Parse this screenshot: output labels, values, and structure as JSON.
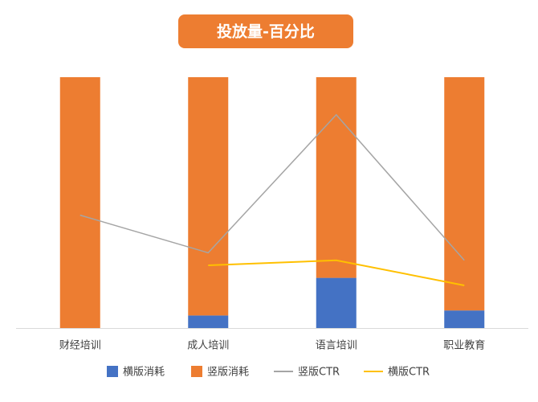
{
  "chart_data": {
    "type": "bar",
    "stacked": true,
    "title": "投放量-百分比",
    "categories": [
      "财经培训",
      "成人培训",
      "语言培训",
      "职业教育"
    ],
    "ylim": [
      0,
      100
    ],
    "y2lim": [
      0,
      100
    ],
    "series": [
      {
        "name": "横版消耗",
        "color": "#4472c4",
        "values": [
          0,
          5,
          20,
          7
        ]
      },
      {
        "name": "竖版消耗",
        "color": "#ed7d31",
        "values": [
          100,
          95,
          80,
          93
        ]
      },
      {
        "name": "竖版CTR",
        "color": "#a5a5a5",
        "type": "line",
        "axis": "y2",
        "values": [
          45,
          30,
          85,
          27
        ]
      },
      {
        "name": "横版CTR",
        "color": "#ffc000",
        "type": "line",
        "axis": "y2",
        "values": [
          null,
          25,
          27,
          17
        ]
      }
    ]
  }
}
